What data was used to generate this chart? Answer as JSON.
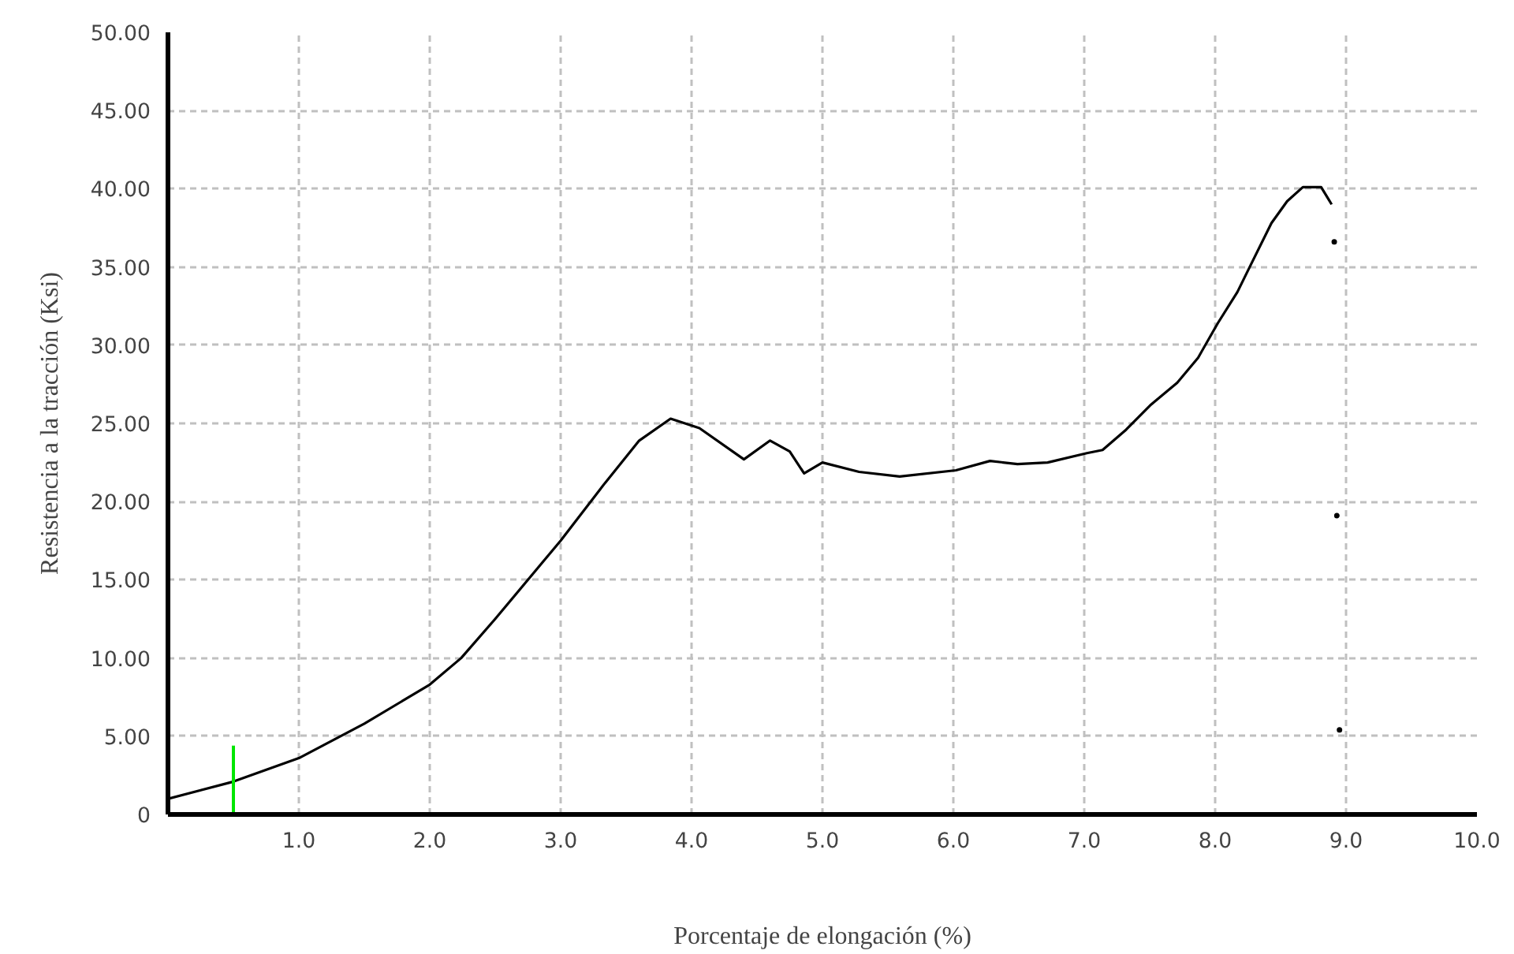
{
  "chart_data": {
    "type": "line",
    "xlabel": "Porcentaje de elongación (%)",
    "ylabel": "Resistencia a la tracción (Ksi)",
    "xlim": [
      0,
      10
    ],
    "ylim": [
      0,
      50
    ],
    "xticks": [
      {
        "value": 1,
        "label": "1.0"
      },
      {
        "value": 2,
        "label": "2.0"
      },
      {
        "value": 3,
        "label": "3.0"
      },
      {
        "value": 4,
        "label": "4.0"
      },
      {
        "value": 5,
        "label": "5.0"
      },
      {
        "value": 6,
        "label": "6.0"
      },
      {
        "value": 7,
        "label": "7.0"
      },
      {
        "value": 8,
        "label": "8.0"
      },
      {
        "value": 9,
        "label": "9.0"
      },
      {
        "value": 10,
        "label": "10.0"
      }
    ],
    "yticks": [
      0,
      {
        "value": 5,
        "label": "5.00"
      },
      {
        "value": 10,
        "label": "10.00"
      },
      {
        "value": 15,
        "label": "15.00"
      },
      {
        "value": 20,
        "label": "20.00"
      },
      {
        "value": 25,
        "label": "25.00"
      },
      {
        "value": 30,
        "label": "30.00"
      },
      {
        "value": 35,
        "label": "35.00"
      },
      {
        "value": 40,
        "label": "40.00"
      },
      {
        "value": 45,
        "label": "45.00"
      },
      {
        "value": 50,
        "label": "50.00"
      }
    ],
    "grid": true,
    "line_style": "solid",
    "marker": "none",
    "series": [
      {
        "color": "#000000",
        "x": [
          0.0,
          0.5,
          1.0,
          1.5,
          2.0,
          2.24,
          2.5,
          2.86,
          3.0,
          3.34,
          3.6,
          3.84,
          4.06,
          4.4,
          4.6,
          4.75,
          4.86,
          5.0,
          5.28,
          5.59,
          6.02,
          6.28,
          6.49,
          6.72,
          7.02,
          7.14,
          7.32,
          7.51,
          7.71,
          7.87,
          8.02,
          8.17,
          8.27,
          8.43,
          8.55,
          8.67,
          8.81,
          8.89
        ],
        "values": [
          1.0,
          2.1,
          3.6,
          5.8,
          8.3,
          10.0,
          12.5,
          16.1,
          17.5,
          21.2,
          23.9,
          25.3,
          24.7,
          22.7,
          23.9,
          23.2,
          21.8,
          22.5,
          21.9,
          21.6,
          22.0,
          22.6,
          22.4,
          22.5,
          23.1,
          23.3,
          24.6,
          26.2,
          27.6,
          29.2,
          31.4,
          33.4,
          35.1,
          37.8,
          39.2,
          40.1,
          40.1,
          39.0
        ]
      },
      {
        "type": "scatter",
        "color": "#000000",
        "marker": "circle",
        "x": [
          8.91,
          8.93,
          8.95
        ],
        "values": [
          36.6,
          19.1,
          5.4
        ]
      },
      {
        "type": "line",
        "color": "#00e600",
        "x": [
          0.5,
          0.5
        ],
        "values": [
          0,
          4.4
        ]
      }
    ]
  }
}
